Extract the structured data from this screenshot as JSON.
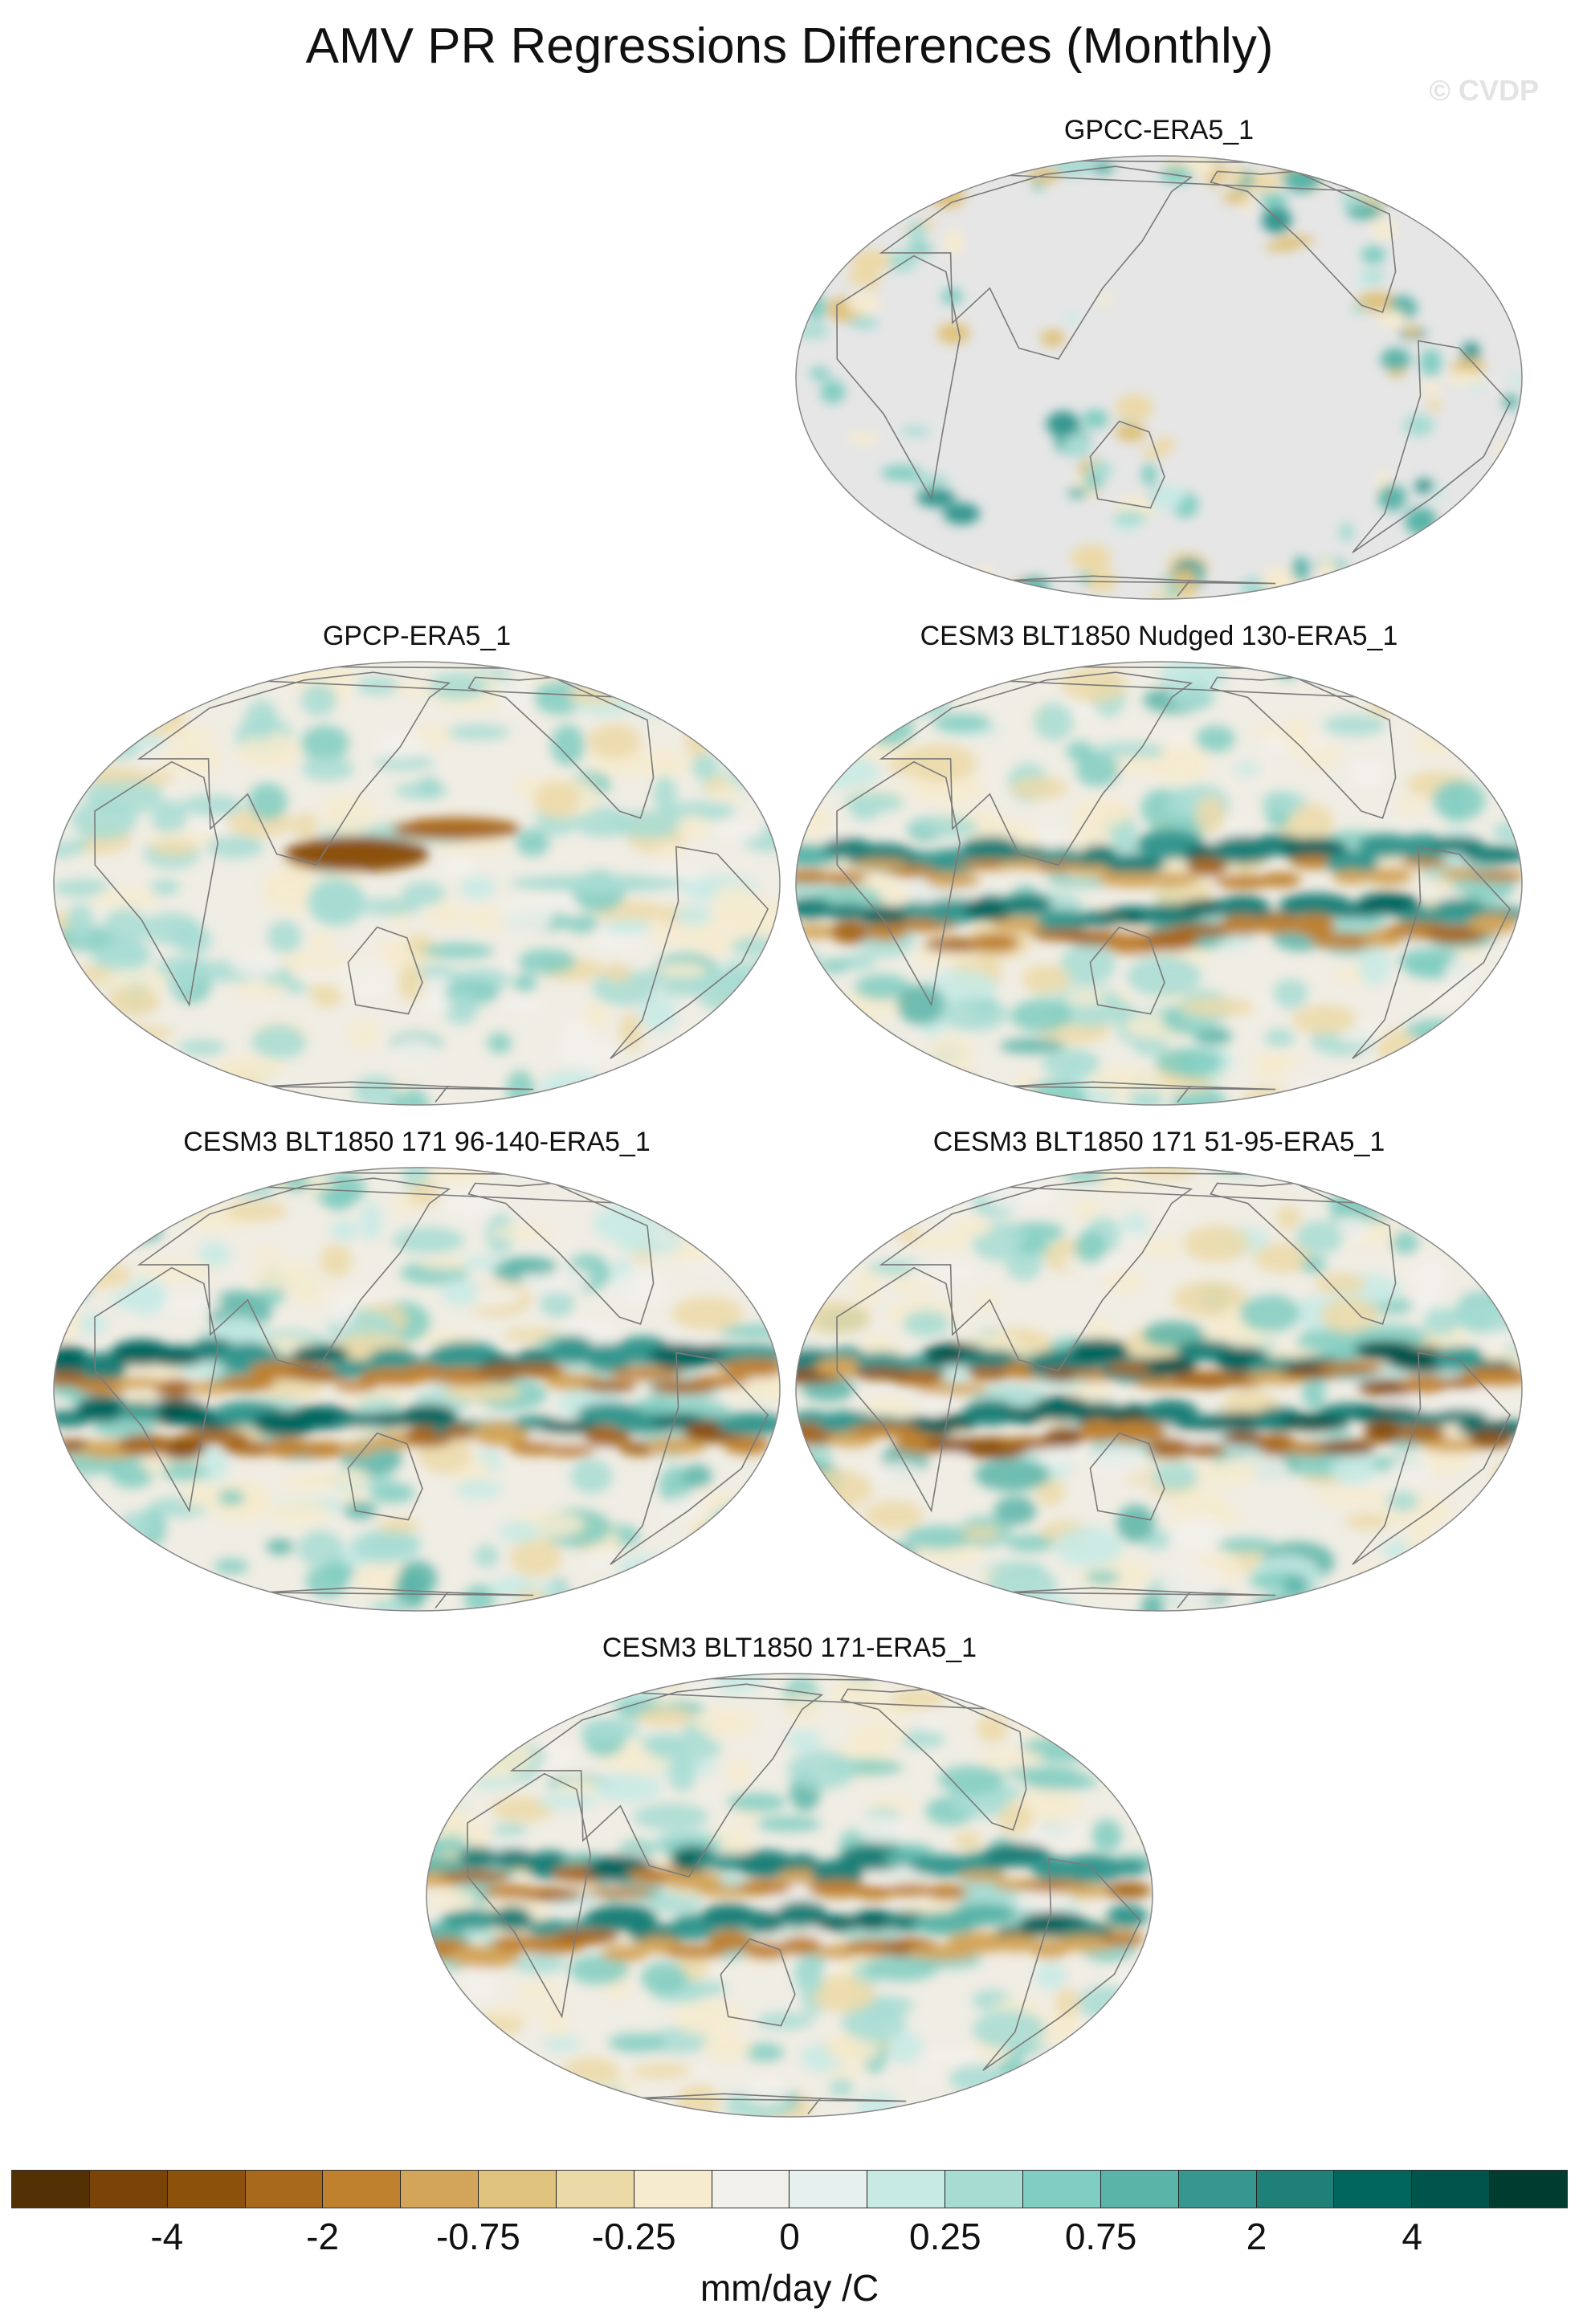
{
  "title": "AMV PR Regressions Differences (Monthly)",
  "watermark": "© CVDP",
  "panels": [
    {
      "title": "GPCC-ERA5_1",
      "pattern": "land-only",
      "strength": 0.45
    },
    {
      "title": "GPCP-ERA5_1",
      "pattern": "pacific-dry",
      "strength": 0.6
    },
    {
      "title": "CESM3 BLT1850 Nudged 130-ERA5_1",
      "pattern": "itcz-double",
      "strength": 0.9
    },
    {
      "title": "CESM3 BLT1850 171 96-140-ERA5_1",
      "pattern": "itcz-double",
      "strength": 0.95
    },
    {
      "title": "CESM3 BLT1850 171 51-95-ERA5_1",
      "pattern": "itcz-double",
      "strength": 1.0
    },
    {
      "title": "CESM3 BLT1850 171-ERA5_1",
      "pattern": "itcz-double",
      "strength": 0.85
    }
  ],
  "colorbar": {
    "colors": [
      "#543005",
      "#7a4409",
      "#8c510a",
      "#a8691d",
      "#bf812d",
      "#d3a55a",
      "#dfc27d",
      "#ecd9a8",
      "#f6ebcf",
      "#f2f0eb",
      "#e6f1ef",
      "#c7eae5",
      "#a7dcd3",
      "#80cdc1",
      "#5ab4a8",
      "#35978f",
      "#1f8078",
      "#01665e",
      "#01544b",
      "#003c30"
    ],
    "tick_labels": [
      "-4",
      "-2",
      "-0.75",
      "-0.25",
      "0",
      "0.25",
      "0.75",
      "2",
      "4"
    ],
    "units": "mm/day /C"
  }
}
